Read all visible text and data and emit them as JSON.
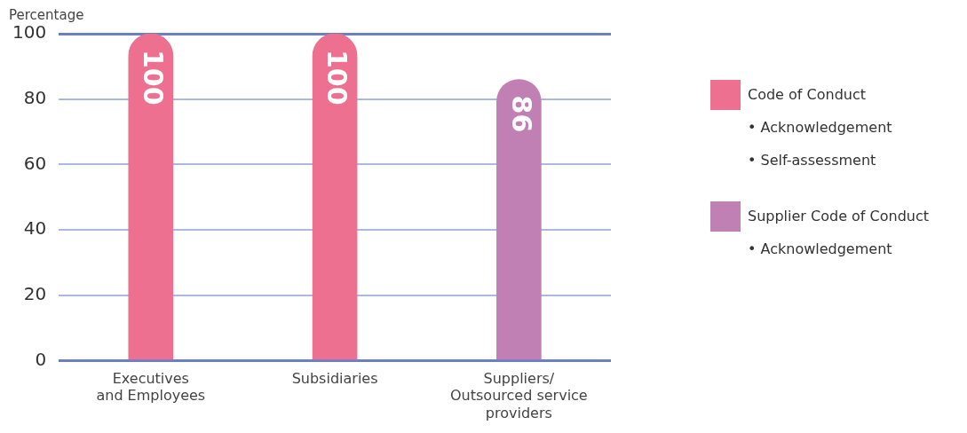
{
  "chart_data": {
    "type": "bar",
    "ylabel": "Percentage",
    "categories": [
      "Executives\nand Employees",
      "Subsidiaries",
      "Suppliers/\nOutsourced service\nproviders"
    ],
    "series": [
      {
        "name": "Code of Conduct\n• Acknowledgement\n• Self-assessment",
        "color": "#ee7090",
        "values": [
          100,
          100,
          null
        ]
      },
      {
        "name": "Supplier Code of Conduct\n• Acknowledgement",
        "color": "#c080b4",
        "values": [
          null,
          null,
          86
        ]
      }
    ],
    "ylim": [
      0,
      100
    ],
    "yticks": [
      0,
      20,
      40,
      60,
      80,
      100
    ],
    "grid": "y",
    "legend": "right",
    "data_labels": true
  }
}
